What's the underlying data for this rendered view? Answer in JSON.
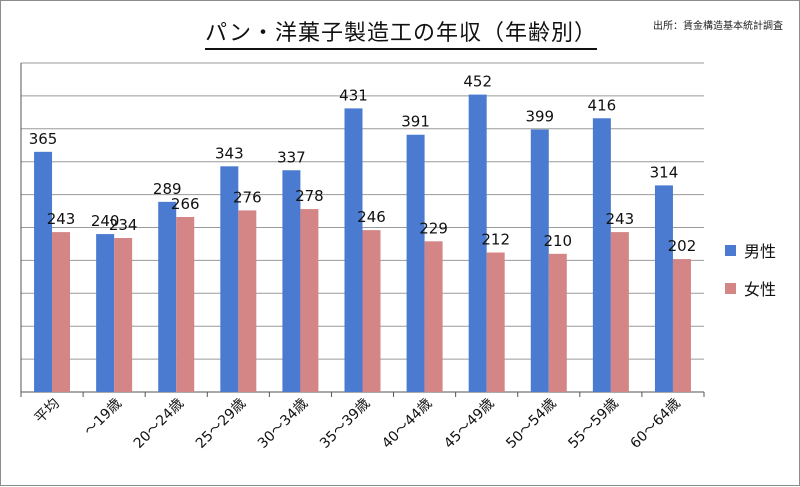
{
  "title": "パン・洋菓子製造工の年収（年齢別）",
  "source": "出所：賃金構造基本統計調査",
  "chart_data": {
    "type": "bar",
    "categories": [
      "平均",
      "～19歳",
      "20～24歳",
      "25～29歳",
      "30～34歳",
      "35～39歳",
      "40～44歳",
      "45～49歳",
      "50～54歳",
      "55～59歳",
      "60～64歳"
    ],
    "series": [
      {
        "name": "男性",
        "color": "#4a7bd0",
        "values": [
          365,
          240,
          289,
          343,
          337,
          431,
          391,
          452,
          399,
          416,
          314
        ]
      },
      {
        "name": "女性",
        "color": "#d48585",
        "values": [
          243,
          234,
          266,
          276,
          278,
          246,
          229,
          212,
          210,
          243,
          202
        ]
      }
    ],
    "ylim": [
      0,
      500
    ],
    "ytick_step": 50,
    "grid": true,
    "legend": "right",
    "ytick_labels_visible": false
  }
}
